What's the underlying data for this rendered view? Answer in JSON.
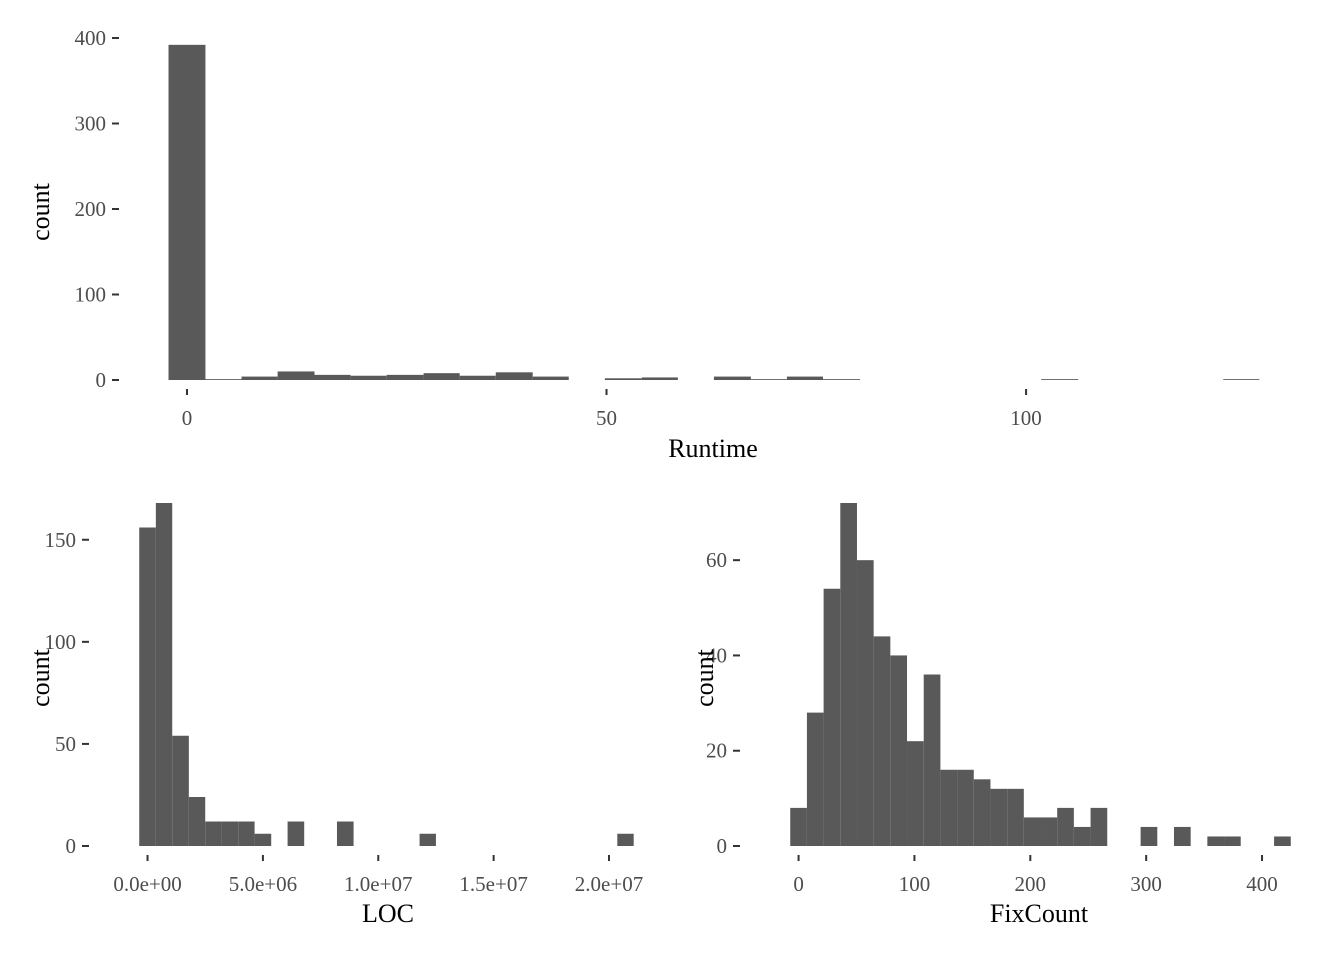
{
  "colors": {
    "bar_fill": "#595959",
    "background": "#ffffff",
    "tick_text": "#4d4d4d",
    "title_text": "#000000"
  },
  "chart_data": [
    {
      "id": "runtime",
      "type": "bar",
      "title": "",
      "xlabel": "Runtime",
      "ylabel": "count",
      "xlim": [
        -2.5,
        128
      ],
      "ylim": [
        0,
        400
      ],
      "xticks": [
        0,
        50,
        100
      ],
      "xtick_labels": [
        "0",
        "50",
        "100"
      ],
      "yticks": [
        0,
        100,
        200,
        300,
        400
      ],
      "ytick_labels": [
        "0",
        "100",
        "200",
        "300",
        "400"
      ],
      "grid": false,
      "legend": "none",
      "bins": [
        {
          "x0": -2.2,
          "x1": 2.2,
          "count": 392
        },
        {
          "x0": 2.2,
          "x1": 6.5,
          "count": 1
        },
        {
          "x0": 6.5,
          "x1": 10.8,
          "count": 4
        },
        {
          "x0": 10.8,
          "x1": 15.2,
          "count": 10
        },
        {
          "x0": 15.2,
          "x1": 19.5,
          "count": 6
        },
        {
          "x0": 19.5,
          "x1": 23.8,
          "count": 5
        },
        {
          "x0": 23.8,
          "x1": 28.2,
          "count": 6
        },
        {
          "x0": 28.2,
          "x1": 32.5,
          "count": 8
        },
        {
          "x0": 32.5,
          "x1": 36.8,
          "count": 5
        },
        {
          "x0": 36.8,
          "x1": 41.2,
          "count": 9
        },
        {
          "x0": 41.2,
          "x1": 45.5,
          "count": 4
        },
        {
          "x0": 45.5,
          "x1": 49.8,
          "count": 0
        },
        {
          "x0": 49.8,
          "x1": 54.2,
          "count": 2
        },
        {
          "x0": 54.2,
          "x1": 58.5,
          "count": 3
        },
        {
          "x0": 58.5,
          "x1": 62.8,
          "count": 0
        },
        {
          "x0": 62.8,
          "x1": 67.2,
          "count": 4
        },
        {
          "x0": 67.2,
          "x1": 71.5,
          "count": 1
        },
        {
          "x0": 71.5,
          "x1": 75.8,
          "count": 4
        },
        {
          "x0": 75.8,
          "x1": 80.2,
          "count": 1
        },
        {
          "x0": 80.2,
          "x1": 84.5,
          "count": 0
        },
        {
          "x0": 84.5,
          "x1": 88.8,
          "count": 0
        },
        {
          "x0": 88.8,
          "x1": 93.2,
          "count": 0
        },
        {
          "x0": 93.2,
          "x1": 97.5,
          "count": 0
        },
        {
          "x0": 97.5,
          "x1": 101.8,
          "count": 0
        },
        {
          "x0": 101.8,
          "x1": 106.2,
          "count": 1
        },
        {
          "x0": 106.2,
          "x1": 110.5,
          "count": 0
        },
        {
          "x0": 110.5,
          "x1": 114.8,
          "count": 0
        },
        {
          "x0": 114.8,
          "x1": 119.2,
          "count": 0
        },
        {
          "x0": 119.2,
          "x1": 123.5,
          "count": 0
        },
        {
          "x0": 123.5,
          "x1": 127.8,
          "count": 1
        }
      ]
    },
    {
      "id": "loc",
      "type": "bar",
      "title": "",
      "xlabel": "LOC",
      "ylabel": "count",
      "xlim": [
        -500000,
        21300000
      ],
      "ylim": [
        0,
        168
      ],
      "xticks": [
        0,
        5000000,
        10000000,
        15000000,
        20000000
      ],
      "xtick_labels": [
        "0.0e+00",
        "5.0e+06",
        "1.0e+07",
        "1.5e+07",
        "2.0e+07"
      ],
      "yticks": [
        0,
        50,
        100,
        150
      ],
      "ytick_labels": [
        "0",
        "50",
        "100",
        "150"
      ],
      "grid": false,
      "legend": "none",
      "bins": [
        {
          "x0": -360000,
          "x1": 360000,
          "count": 156
        },
        {
          "x0": 360000,
          "x1": 1070000,
          "count": 168
        },
        {
          "x0": 1070000,
          "x1": 1790000,
          "count": 54
        },
        {
          "x0": 1790000,
          "x1": 2500000,
          "count": 24
        },
        {
          "x0": 2500000,
          "x1": 3210000,
          "count": 12
        },
        {
          "x0": 3210000,
          "x1": 3930000,
          "count": 12
        },
        {
          "x0": 3930000,
          "x1": 4640000,
          "count": 12
        },
        {
          "x0": 4640000,
          "x1": 5360000,
          "count": 6
        },
        {
          "x0": 5360000,
          "x1": 6070000,
          "count": 0
        },
        {
          "x0": 6070000,
          "x1": 6790000,
          "count": 12
        },
        {
          "x0": 6790000,
          "x1": 7500000,
          "count": 0
        },
        {
          "x0": 7500000,
          "x1": 8210000,
          "count": 0
        },
        {
          "x0": 8210000,
          "x1": 8930000,
          "count": 12
        },
        {
          "x0": 8930000,
          "x1": 9640000,
          "count": 0
        },
        {
          "x0": 9640000,
          "x1": 10360000,
          "count": 0
        },
        {
          "x0": 10360000,
          "x1": 11070000,
          "count": 0
        },
        {
          "x0": 11070000,
          "x1": 11790000,
          "count": 0
        },
        {
          "x0": 11790000,
          "x1": 12500000,
          "count": 6
        },
        {
          "x0": 12500000,
          "x1": 13210000,
          "count": 0
        },
        {
          "x0": 13210000,
          "x1": 13930000,
          "count": 0
        },
        {
          "x0": 13930000,
          "x1": 14640000,
          "count": 0
        },
        {
          "x0": 14640000,
          "x1": 15360000,
          "count": 0
        },
        {
          "x0": 15360000,
          "x1": 16070000,
          "count": 0
        },
        {
          "x0": 16070000,
          "x1": 16790000,
          "count": 0
        },
        {
          "x0": 16790000,
          "x1": 17500000,
          "count": 0
        },
        {
          "x0": 17500000,
          "x1": 18210000,
          "count": 0
        },
        {
          "x0": 18210000,
          "x1": 18930000,
          "count": 0
        },
        {
          "x0": 18930000,
          "x1": 19640000,
          "count": 0
        },
        {
          "x0": 19640000,
          "x1": 20360000,
          "count": 0
        },
        {
          "x0": 20360000,
          "x1": 21070000,
          "count": 6
        }
      ]
    },
    {
      "id": "fixcount",
      "type": "bar",
      "title": "",
      "xlabel": "FixCount",
      "ylabel": "count",
      "xlim": [
        -10,
        425
      ],
      "ylim": [
        0,
        72
      ],
      "xticks": [
        0,
        100,
        200,
        300,
        400
      ],
      "xtick_labels": [
        "0",
        "100",
        "200",
        "300",
        "400"
      ],
      "yticks": [
        0,
        20,
        40,
        60
      ],
      "ytick_labels": [
        "0",
        "20",
        "40",
        "60"
      ],
      "grid": false,
      "legend": "none",
      "bins": [
        {
          "x0": -7.2,
          "x1": 7.2,
          "count": 8
        },
        {
          "x0": 7.2,
          "x1": 21.6,
          "count": 28
        },
        {
          "x0": 21.6,
          "x1": 36.0,
          "count": 54
        },
        {
          "x0": 36.0,
          "x1": 50.4,
          "count": 72
        },
        {
          "x0": 50.4,
          "x1": 64.8,
          "count": 60
        },
        {
          "x0": 64.8,
          "x1": 79.2,
          "count": 44
        },
        {
          "x0": 79.2,
          "x1": 93.6,
          "count": 40
        },
        {
          "x0": 93.6,
          "x1": 108.0,
          "count": 22
        },
        {
          "x0": 108.0,
          "x1": 122.4,
          "count": 36
        },
        {
          "x0": 122.4,
          "x1": 136.8,
          "count": 16
        },
        {
          "x0": 136.8,
          "x1": 151.2,
          "count": 16
        },
        {
          "x0": 151.2,
          "x1": 165.6,
          "count": 14
        },
        {
          "x0": 165.6,
          "x1": 180.0,
          "count": 12
        },
        {
          "x0": 180.0,
          "x1": 194.4,
          "count": 12
        },
        {
          "x0": 194.4,
          "x1": 208.8,
          "count": 6
        },
        {
          "x0": 208.8,
          "x1": 223.2,
          "count": 6
        },
        {
          "x0": 223.2,
          "x1": 237.6,
          "count": 8
        },
        {
          "x0": 237.6,
          "x1": 252.0,
          "count": 4
        },
        {
          "x0": 252.0,
          "x1": 266.4,
          "count": 8
        },
        {
          "x0": 266.4,
          "x1": 280.8,
          "count": 0
        },
        {
          "x0": 280.8,
          "x1": 295.2,
          "count": 0
        },
        {
          "x0": 295.2,
          "x1": 309.6,
          "count": 4
        },
        {
          "x0": 309.6,
          "x1": 324.0,
          "count": 0
        },
        {
          "x0": 324.0,
          "x1": 338.4,
          "count": 4
        },
        {
          "x0": 338.4,
          "x1": 352.8,
          "count": 0
        },
        {
          "x0": 352.8,
          "x1": 367.2,
          "count": 2
        },
        {
          "x0": 367.2,
          "x1": 381.6,
          "count": 2
        },
        {
          "x0": 381.6,
          "x1": 396.0,
          "count": 0
        },
        {
          "x0": 396.0,
          "x1": 410.4,
          "count": 0
        },
        {
          "x0": 410.4,
          "x1": 424.8,
          "count": 2
        }
      ]
    }
  ]
}
